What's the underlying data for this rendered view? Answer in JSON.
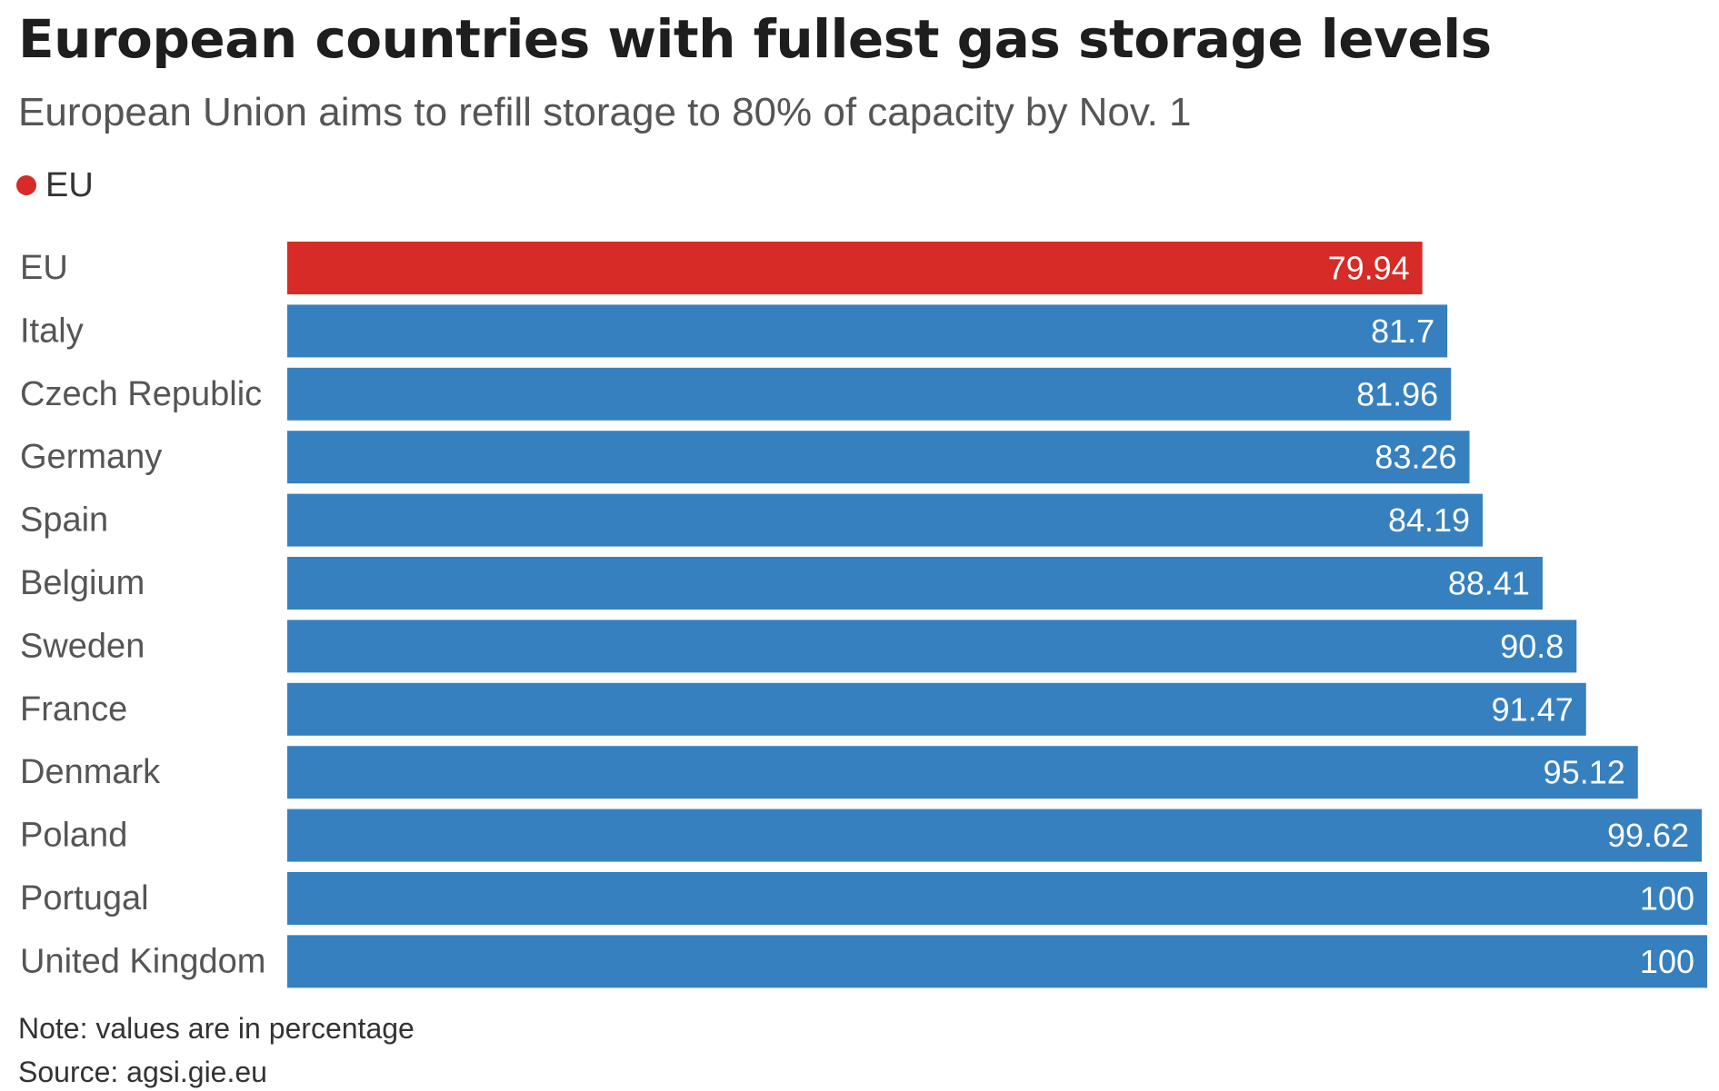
{
  "chart_data": {
    "type": "bar",
    "orientation": "horizontal",
    "title": "European countries with fullest gas storage levels",
    "subtitle": "European Union aims to refill storage to 80% of capacity by Nov. 1",
    "legend": {
      "label": "EU",
      "color": "#d62b26",
      "placement": "top-left"
    },
    "categories": [
      "EU",
      "Italy",
      "Czech Republic",
      "Germany",
      "Spain",
      "Belgium",
      "Sweden",
      "France",
      "Denmark",
      "Poland",
      "Portugal",
      "United Kingdom"
    ],
    "values": [
      79.94,
      81.7,
      81.96,
      83.26,
      84.19,
      88.41,
      90.8,
      91.47,
      95.12,
      99.62,
      100,
      100
    ],
    "highlight_category": "EU",
    "highlight_color": "#d62b26",
    "bar_color": "#3680bf",
    "xlim": [
      0,
      100
    ],
    "grid": false,
    "note": "Note: values are in percentage",
    "source": "Source: agsi.gie.eu"
  }
}
